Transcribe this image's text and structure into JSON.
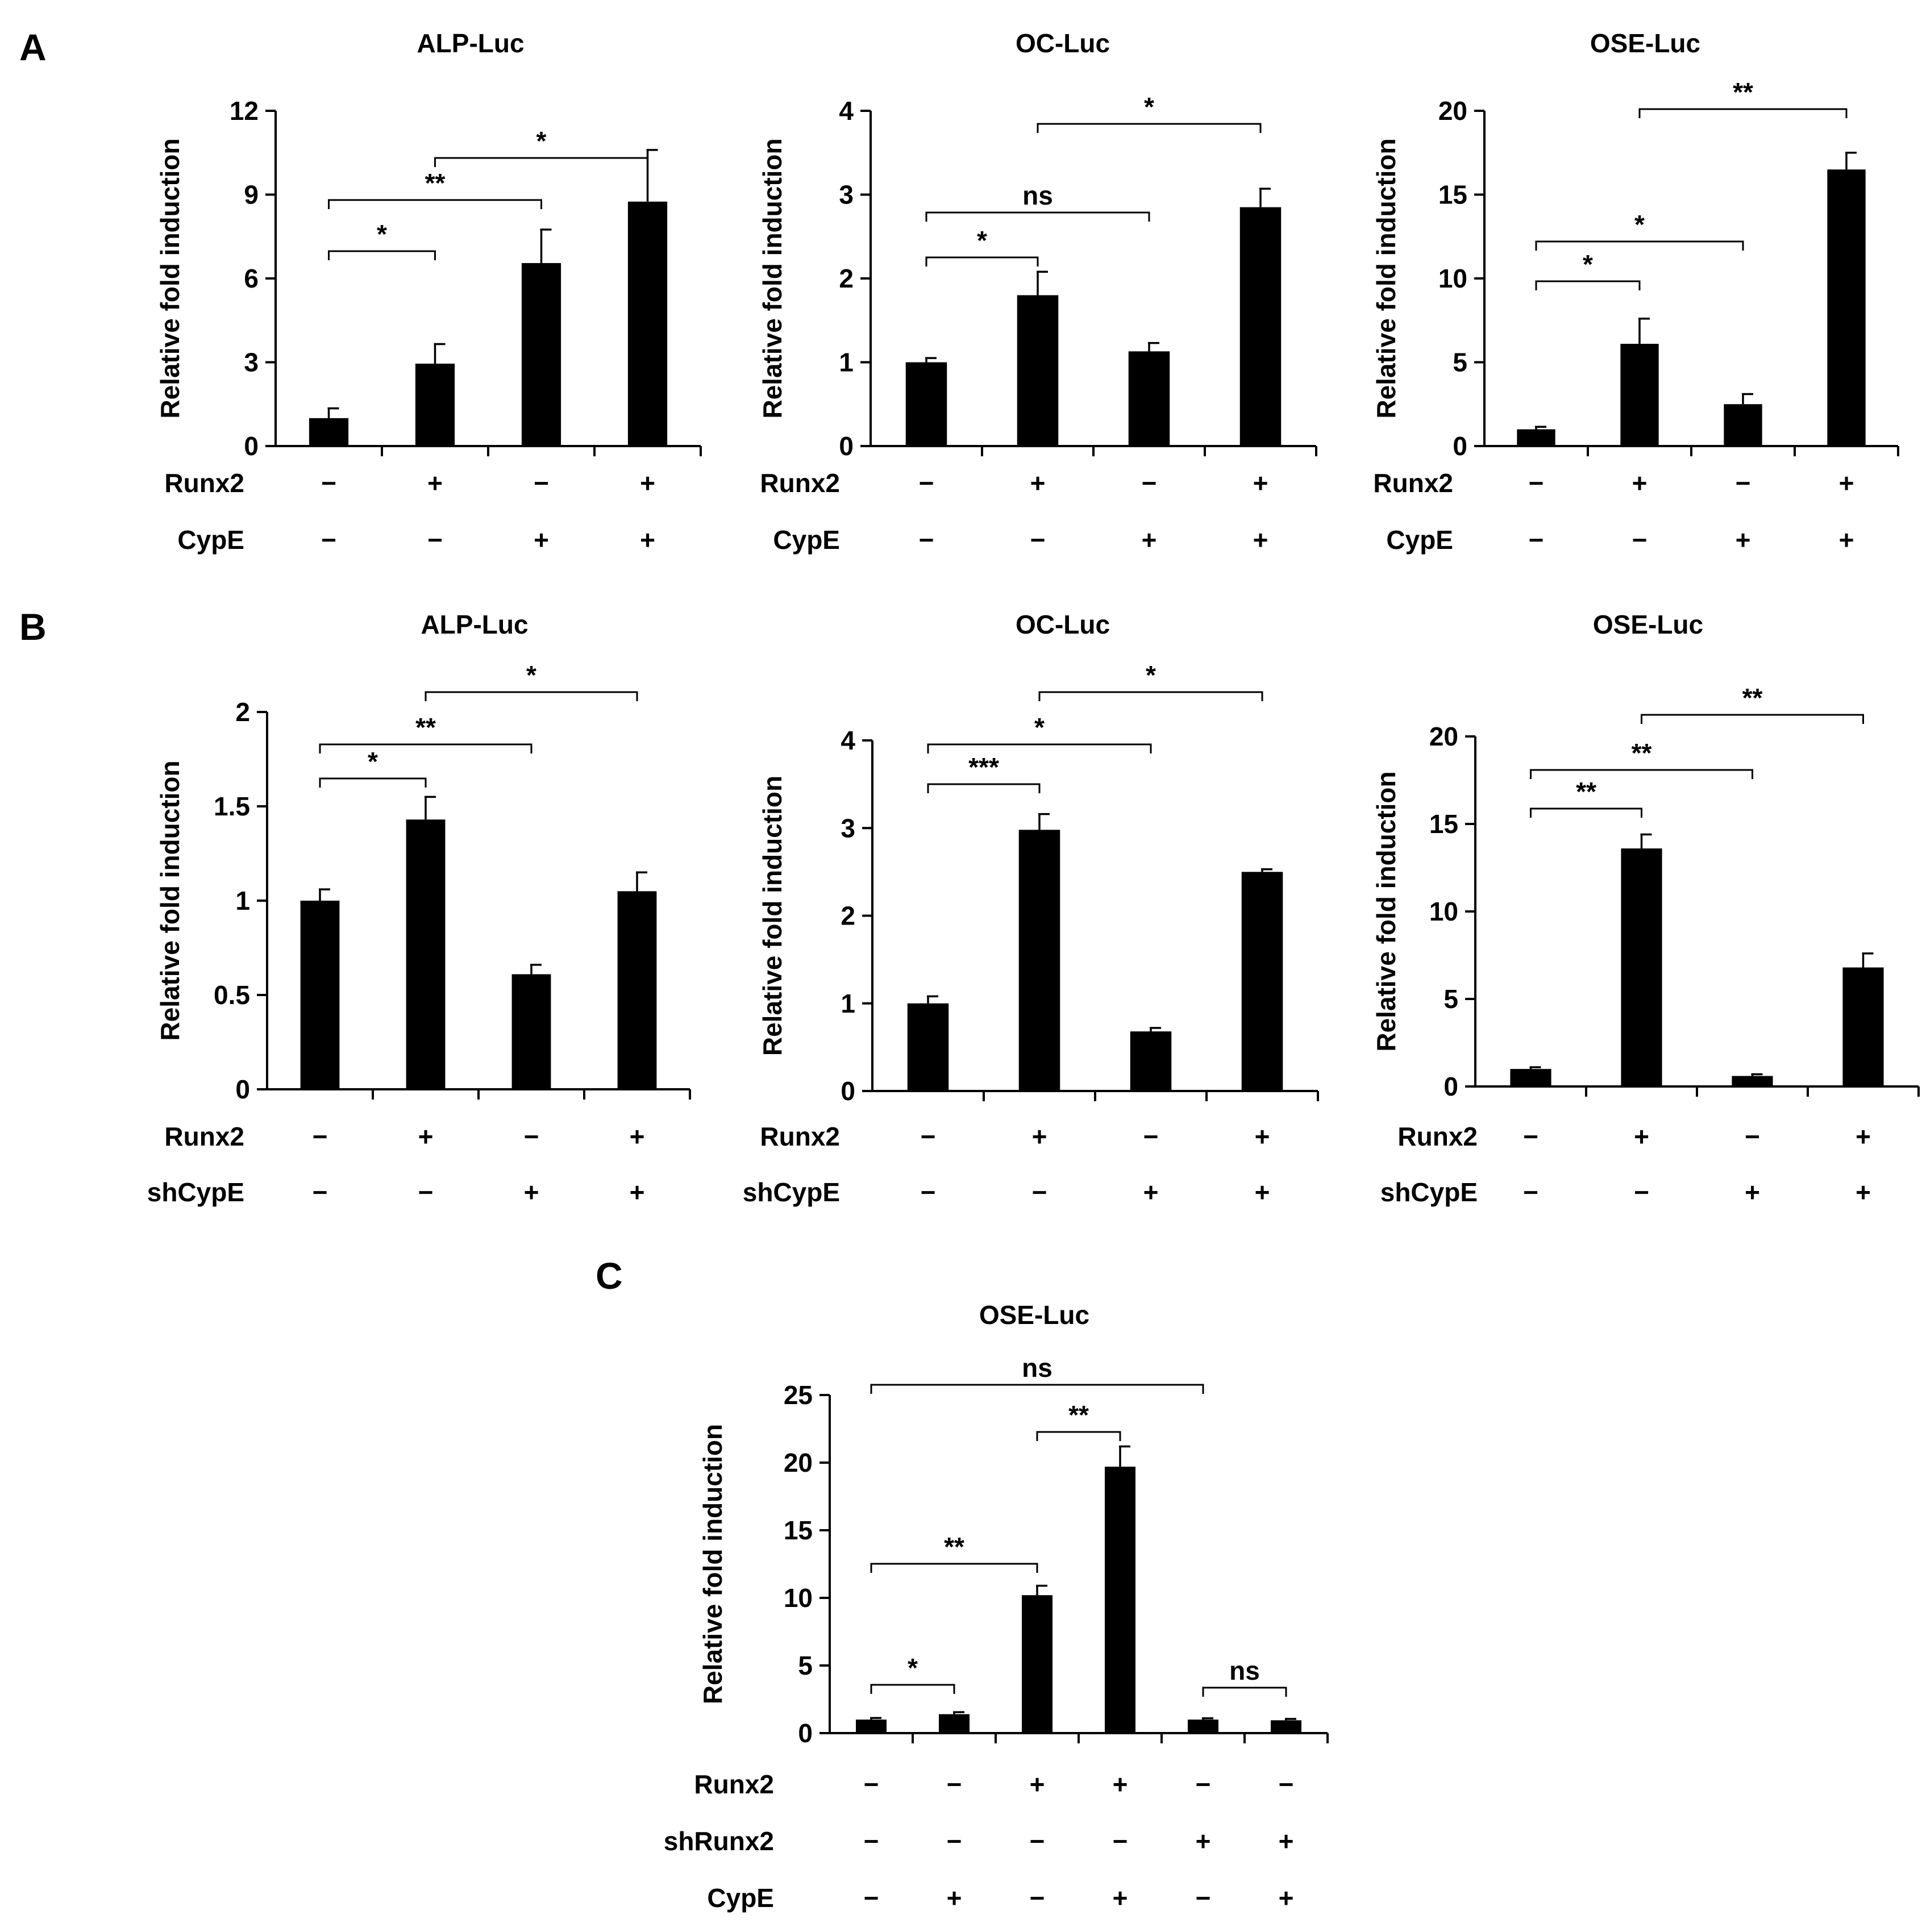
{
  "figure": {
    "background": "#ffffff",
    "bar_color": "#000000",
    "axis_label": "Relative fold induction"
  },
  "panels": [
    {
      "id": "A",
      "label": "A"
    },
    {
      "id": "B",
      "label": "B"
    },
    {
      "id": "C",
      "label": "C"
    }
  ],
  "chart_data": [
    {
      "panel": "A",
      "type": "bar",
      "title": "ALP-Luc",
      "ylabel": "Relative fold induction",
      "ylim": [
        0,
        12
      ],
      "yticks": [
        "0",
        "3",
        "6",
        "9",
        "12"
      ],
      "values": [
        1.0,
        2.95,
        6.55,
        8.75
      ],
      "errors": [
        0.35,
        0.7,
        1.2,
        1.85
      ],
      "conditions": [
        {
          "name": "Runx2",
          "signs": [
            "−",
            "+",
            "−",
            "+"
          ]
        },
        {
          "name": "CypE",
          "signs": [
            "−",
            "−",
            "+",
            "+"
          ]
        }
      ],
      "significance": [
        {
          "from": 0,
          "to": 1,
          "label": "*"
        },
        {
          "from": 0,
          "to": 2,
          "label": "**"
        },
        {
          "from": 1,
          "to": 3,
          "label": "*"
        }
      ]
    },
    {
      "panel": "A",
      "type": "bar",
      "title": "OC-Luc",
      "ylabel": "Relative fold induction",
      "ylim": [
        0,
        4
      ],
      "yticks": [
        "0",
        "1",
        "2",
        "3",
        "4"
      ],
      "values": [
        1.0,
        1.8,
        1.13,
        2.85
      ],
      "errors": [
        0.05,
        0.28,
        0.1,
        0.22
      ],
      "conditions": [
        {
          "name": "Runx2",
          "signs": [
            "−",
            "+",
            "−",
            "+"
          ]
        },
        {
          "name": "CypE",
          "signs": [
            "−",
            "−",
            "+",
            "+"
          ]
        }
      ],
      "significance": [
        {
          "from": 0,
          "to": 1,
          "label": "*"
        },
        {
          "from": 0,
          "to": 2,
          "label": "ns"
        },
        {
          "from": 1,
          "to": 3,
          "label": "*"
        }
      ]
    },
    {
      "panel": "A",
      "type": "bar",
      "title": "OSE-Luc",
      "ylabel": "Relative fold induction",
      "ylim": [
        0,
        20
      ],
      "yticks": [
        "0",
        "5",
        "10",
        "15",
        "20"
      ],
      "values": [
        1.0,
        6.1,
        2.5,
        16.5
      ],
      "errors": [
        0.15,
        1.5,
        0.6,
        1.0
      ],
      "conditions": [
        {
          "name": "Runx2",
          "signs": [
            "−",
            "+",
            "−",
            "+"
          ]
        },
        {
          "name": "CypE",
          "signs": [
            "−",
            "−",
            "+",
            "+"
          ]
        }
      ],
      "significance": [
        {
          "from": 0,
          "to": 1,
          "label": "*"
        },
        {
          "from": 0,
          "to": 2,
          "label": "*"
        },
        {
          "from": 1,
          "to": 3,
          "label": "**"
        }
      ]
    },
    {
      "panel": "B",
      "type": "bar",
      "title": "ALP-Luc",
      "ylabel": "Relative fold induction",
      "ylim": [
        0,
        2
      ],
      "yticks": [
        "0",
        "0.5",
        "1",
        "1.5",
        "2"
      ],
      "values": [
        1.0,
        1.43,
        0.61,
        1.05
      ],
      "errors": [
        0.06,
        0.12,
        0.05,
        0.1
      ],
      "conditions": [
        {
          "name": "Runx2",
          "signs": [
            "−",
            "+",
            "−",
            "+"
          ]
        },
        {
          "name": "shCypE",
          "signs": [
            "−",
            "−",
            "+",
            "+"
          ]
        }
      ],
      "significance": [
        {
          "from": 0,
          "to": 1,
          "label": "*"
        },
        {
          "from": 0,
          "to": 2,
          "label": "**"
        },
        {
          "from": 1,
          "to": 3,
          "label": "*"
        }
      ]
    },
    {
      "panel": "B",
      "type": "bar",
      "title": "OC-Luc",
      "ylabel": "Relative fold induction",
      "ylim": [
        0,
        4
      ],
      "yticks": [
        "0",
        "1",
        "2",
        "3",
        "4"
      ],
      "values": [
        1.0,
        2.98,
        0.68,
        2.5
      ],
      "errors": [
        0.08,
        0.18,
        0.04,
        0.03
      ],
      "conditions": [
        {
          "name": "Runx2",
          "signs": [
            "−",
            "+",
            "−",
            "+"
          ]
        },
        {
          "name": "shCypE",
          "signs": [
            "−",
            "−",
            "+",
            "+"
          ]
        }
      ],
      "significance": [
        {
          "from": 0,
          "to": 1,
          "label": "***"
        },
        {
          "from": 0,
          "to": 2,
          "label": "*"
        },
        {
          "from": 1,
          "to": 3,
          "label": "*"
        }
      ]
    },
    {
      "panel": "B",
      "type": "bar",
      "title": "OSE-Luc",
      "ylabel": "Relative fold induction",
      "ylim": [
        0,
        20
      ],
      "yticks": [
        "0",
        "5",
        "10",
        "15",
        "20"
      ],
      "values": [
        1.0,
        13.6,
        0.6,
        6.8
      ],
      "errors": [
        0.1,
        0.8,
        0.1,
        0.8
      ],
      "conditions": [
        {
          "name": "Runx2",
          "signs": [
            "−",
            "+",
            "−",
            "+"
          ]
        },
        {
          "name": "shCypE",
          "signs": [
            "−",
            "−",
            "+",
            "+"
          ]
        }
      ],
      "significance": [
        {
          "from": 0,
          "to": 1,
          "label": "**"
        },
        {
          "from": 0,
          "to": 2,
          "label": "**"
        },
        {
          "from": 1,
          "to": 3,
          "label": "**"
        }
      ]
    },
    {
      "panel": "C",
      "type": "bar",
      "title": "OSE-Luc",
      "ylabel": "Relative fold induction",
      "ylim": [
        0,
        25
      ],
      "yticks": [
        "0",
        "5",
        "10",
        "15",
        "20",
        "25"
      ],
      "values": [
        1.0,
        1.4,
        10.2,
        19.7,
        1.0,
        0.95
      ],
      "errors": [
        0.12,
        0.15,
        0.7,
        1.5,
        0.1,
        0.1
      ],
      "conditions": [
        {
          "name": "Runx2",
          "signs": [
            "−",
            "−",
            "+",
            "+",
            "−",
            "−"
          ]
        },
        {
          "name": "shRunx2",
          "signs": [
            "−",
            "−",
            "−",
            "−",
            "+",
            "+"
          ]
        },
        {
          "name": "CypE",
          "signs": [
            "−",
            "+",
            "−",
            "+",
            "−",
            "+"
          ]
        }
      ],
      "significance": [
        {
          "from": 0,
          "to": 1,
          "label": "*"
        },
        {
          "from": 0,
          "to": 2,
          "label": "**"
        },
        {
          "from": 2,
          "to": 3,
          "label": "**"
        },
        {
          "from": 4,
          "to": 5,
          "label": "ns"
        },
        {
          "from": 0,
          "to": 4,
          "label": "ns"
        }
      ]
    }
  ]
}
